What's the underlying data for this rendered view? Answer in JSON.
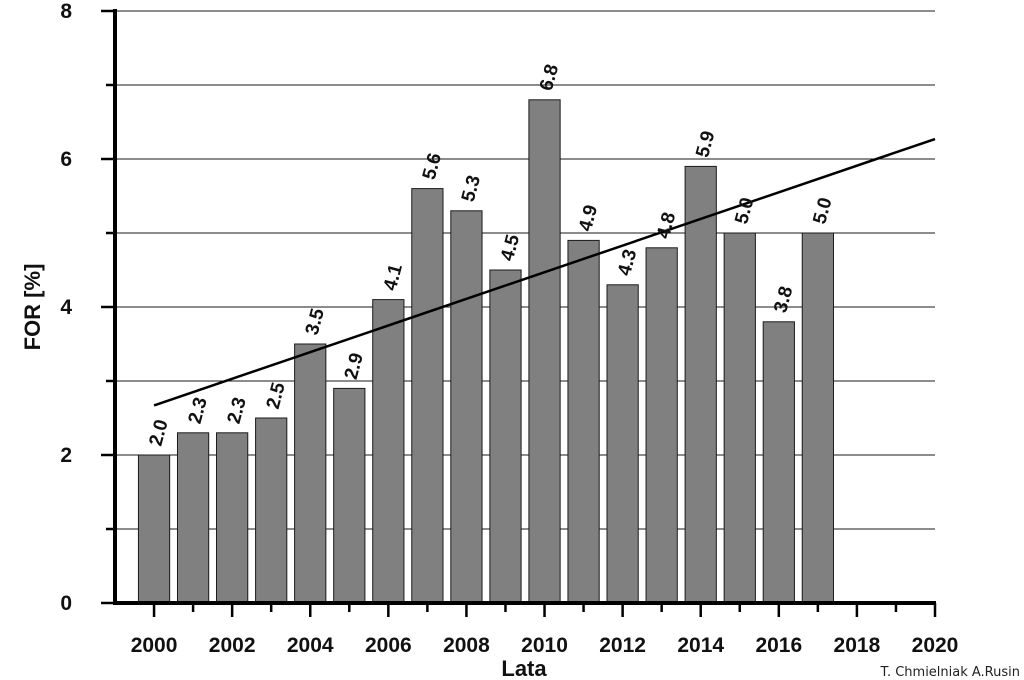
{
  "chart_data": {
    "type": "bar",
    "categories": [
      "2000",
      "2001",
      "2002",
      "2003",
      "2004",
      "2005",
      "2006",
      "2007",
      "2008",
      "2009",
      "2010",
      "2011",
      "2012",
      "2013",
      "2014",
      "2015",
      "2016",
      "2017"
    ],
    "values": [
      2.0,
      2.3,
      2.3,
      2.5,
      3.5,
      2.9,
      4.1,
      5.6,
      5.3,
      4.5,
      6.8,
      4.9,
      4.3,
      4.8,
      5.9,
      5.0,
      3.8,
      5.0
    ],
    "data_labels": [
      "2.0",
      "2.3",
      "2.3",
      "2.5",
      "3.5",
      "2.9",
      "4.1",
      "5.6",
      "5.3",
      "4.5",
      "6.8",
      "4.9",
      "4.3",
      "4.8",
      "5.9",
      "5.0",
      "3.8",
      "5.0"
    ],
    "xlabel": "Lata",
    "ylabel": "FOR [%]",
    "xlim": [
      1999,
      2020
    ],
    "ylim": [
      0,
      8
    ],
    "x_ticks": [
      "2000",
      "2002",
      "2004",
      "2006",
      "2008",
      "2010",
      "2012",
      "2014",
      "2016",
      "2018",
      "2020"
    ],
    "y_ticks": [
      "0",
      "2",
      "4",
      "6",
      "8"
    ],
    "trendline": {
      "type": "linear",
      "x": [
        2000,
        2020
      ],
      "y": [
        2.67,
        6.27
      ]
    },
    "grid": true,
    "bar_color": "#808080"
  },
  "credit": "T. Chmielniak A.Rusin"
}
